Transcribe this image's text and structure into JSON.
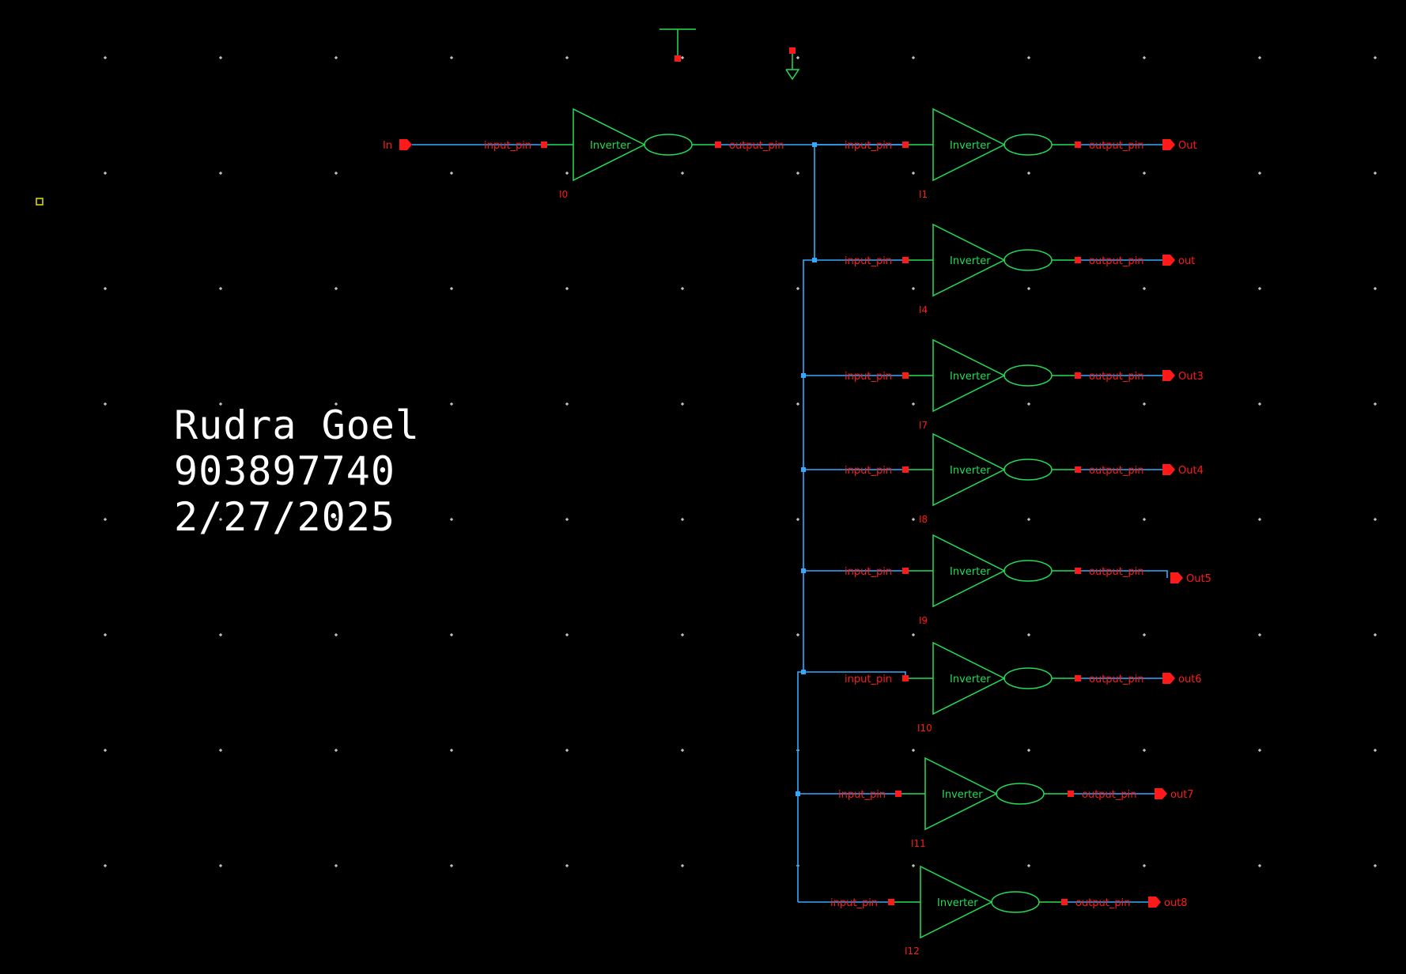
{
  "colors": {
    "background": "#000000",
    "grid_dot": "#ffffff",
    "wire": "#33aaff",
    "symbol": "#22dd55",
    "pin": "#ff1a1a",
    "label": "#ff1a1a",
    "signature": "#ffffff",
    "marker": "#e6e600"
  },
  "signature": {
    "name": "Rudra Goel",
    "id": "903897740",
    "date": "2/27/2025"
  },
  "input_port": {
    "label": "In"
  },
  "inverters": [
    {
      "instance": "I0",
      "cell": "Inverter",
      "in_pin": "input_pin",
      "out_pin": "output_pin",
      "out_port": ""
    },
    {
      "instance": "I1",
      "cell": "Inverter",
      "in_pin": "input_pin",
      "out_pin": "output_pin",
      "out_port": "Out"
    },
    {
      "instance": "I4",
      "cell": "Inverter",
      "in_pin": "input_pin",
      "out_pin": "output_pin",
      "out_port": "out"
    },
    {
      "instance": "I7",
      "cell": "Inverter",
      "in_pin": "input_pin",
      "out_pin": "output_pin",
      "out_port": "Out3"
    },
    {
      "instance": "I8",
      "cell": "Inverter",
      "in_pin": "input_pin",
      "out_pin": "output_pin",
      "out_port": "Out4"
    },
    {
      "instance": "I9",
      "cell": "Inverter",
      "in_pin": "input_pin",
      "out_pin": "output_pin",
      "out_port": "Out5"
    },
    {
      "instance": "I10",
      "cell": "Inverter",
      "in_pin": "input_pin",
      "out_pin": "output_pin",
      "out_port": "out6"
    },
    {
      "instance": "I11",
      "cell": "Inverter",
      "in_pin": "input_pin",
      "out_pin": "output_pin",
      "out_port": "out7"
    },
    {
      "instance": "I12",
      "cell": "Inverter",
      "in_pin": "input_pin",
      "out_pin": "output_pin",
      "out_port": "out8"
    }
  ],
  "supplies": [
    {
      "name": "vdd-symbol"
    },
    {
      "name": "gnd-symbol"
    }
  ]
}
